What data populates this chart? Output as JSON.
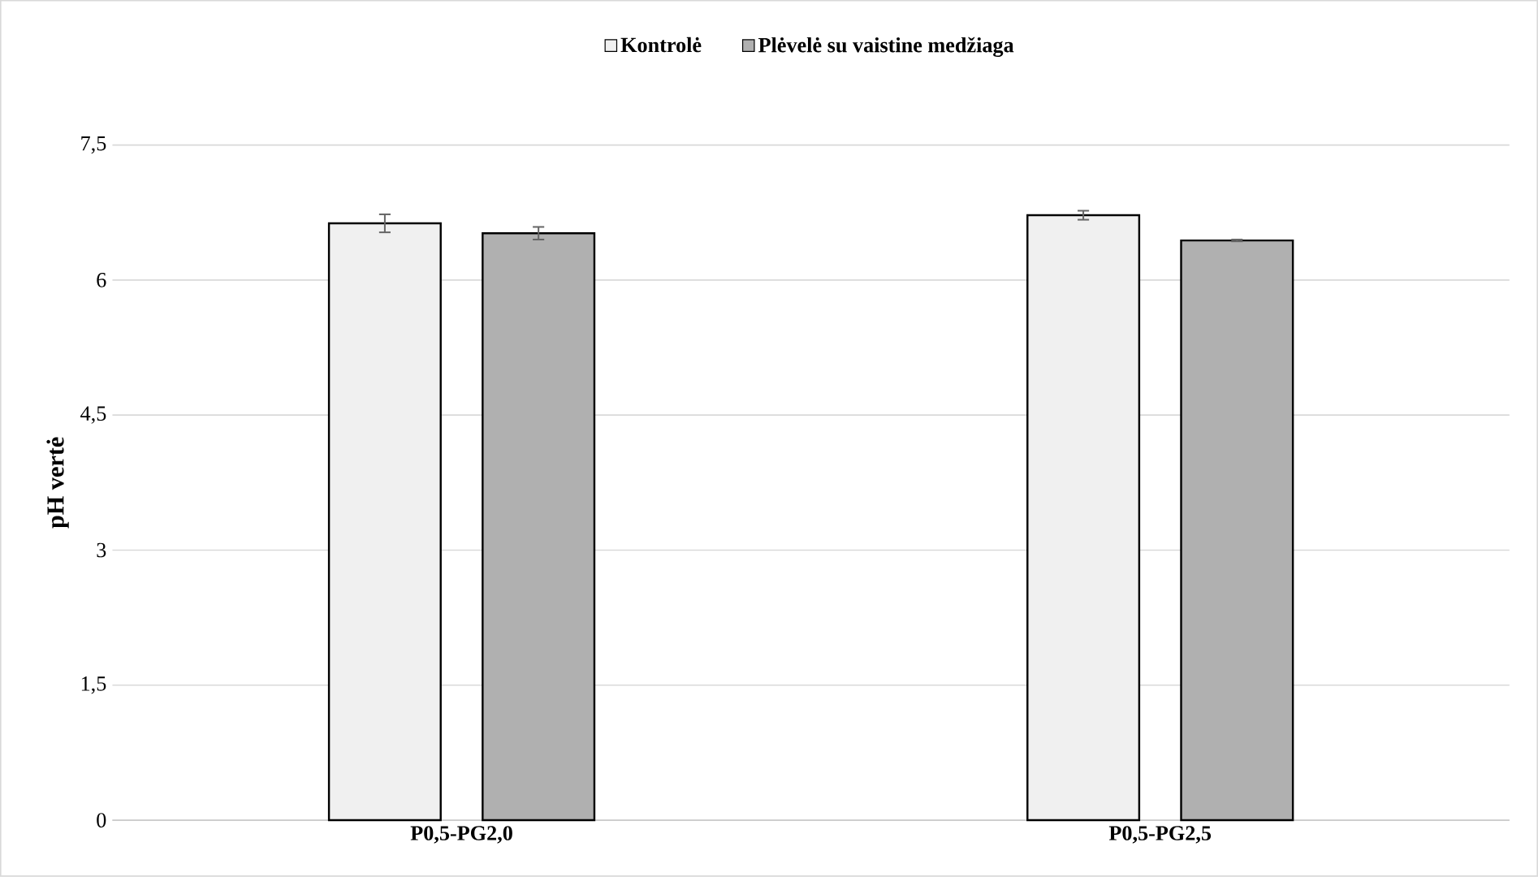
{
  "chart_data": {
    "type": "bar",
    "ylabel": "pH vertė",
    "categories": [
      "P0,5-PG2,0",
      "P0,5-PG2,5"
    ],
    "series": [
      {
        "name": "Kontrolė",
        "color": "#f0f0f0",
        "values": [
          6.63,
          6.72
        ],
        "errors": [
          0.1,
          0.05
        ]
      },
      {
        "name": "Plėvelė su vaistine medžiaga",
        "color": "#b0b0b0",
        "values": [
          6.52,
          6.44
        ],
        "errors": [
          0.07,
          0.01
        ]
      }
    ],
    "ylim": [
      0,
      7.5
    ],
    "yticks": [
      {
        "value": 0,
        "label": "0"
      },
      {
        "value": 1.5,
        "label": "1,5"
      },
      {
        "value": 3,
        "label": "3"
      },
      {
        "value": 4.5,
        "label": "4,5"
      },
      {
        "value": 6,
        "label": "6"
      },
      {
        "value": 7.5,
        "label": "7,5"
      }
    ],
    "grid": "y",
    "legend": "top"
  }
}
